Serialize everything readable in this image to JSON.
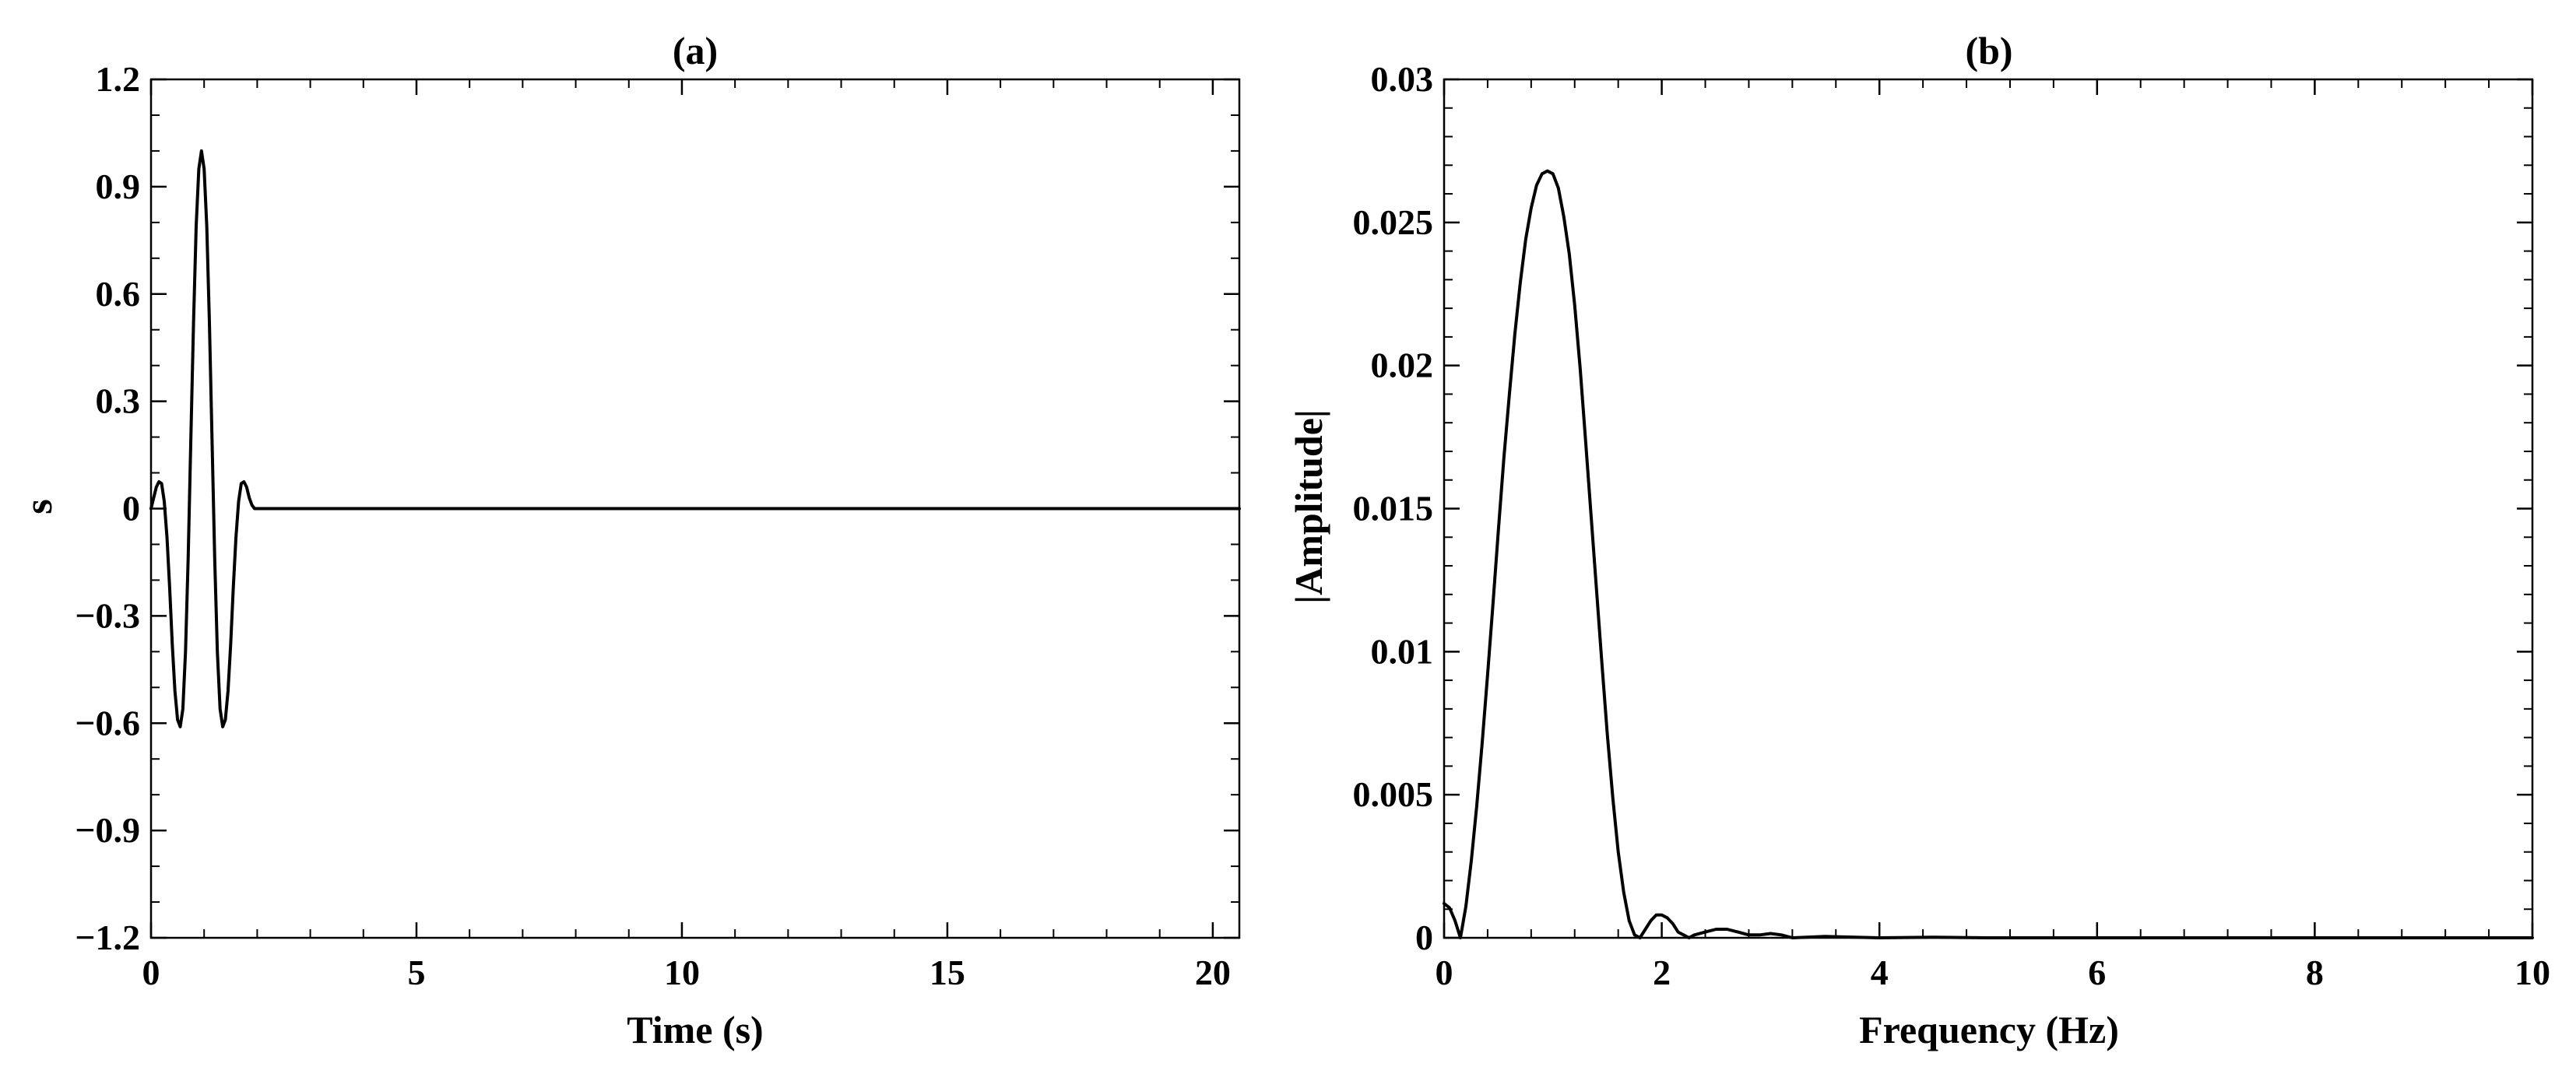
{
  "figure": {
    "background": "#ffffff",
    "line_color": "#000000"
  },
  "chart_data": [
    {
      "type": "line",
      "title": "(a)",
      "xlabel": "Time (s)",
      "ylabel": "s",
      "xlim": [
        0,
        20.5
      ],
      "ylim": [
        -1.2,
        1.2
      ],
      "xticks": [
        0,
        5,
        10,
        15,
        20
      ],
      "xtick_labels": [
        "0",
        "5",
        "10",
        "15",
        "20"
      ],
      "yticks": [
        -1.2,
        -0.9,
        -0.6,
        -0.3,
        0,
        0.3,
        0.6,
        0.9,
        1.2
      ],
      "ytick_labels": [
        "-1.2",
        "-0.9",
        "-0.6",
        "-0.3",
        "0",
        "0.3",
        "0.6",
        "0.9",
        "1.2"
      ],
      "minor_ticks": true,
      "grid": false,
      "box": true,
      "series": [
        {
          "x": [
            0,
            0.05,
            0.1,
            0.15,
            0.2,
            0.25,
            0.3,
            0.35,
            0.4,
            0.45,
            0.5,
            0.55,
            0.6,
            0.65,
            0.7,
            0.75,
            0.8,
            0.85,
            0.9,
            0.95,
            1.0,
            1.05,
            1.1,
            1.15,
            1.2,
            1.25,
            1.3,
            1.35,
            1.4,
            1.45,
            1.5,
            1.55,
            1.6,
            1.65,
            1.7,
            1.75,
            1.8,
            1.85,
            1.9,
            1.95,
            2.0,
            2.05,
            2.1,
            2.15,
            2.2,
            2.3,
            2.5,
            3.0,
            5.0,
            10.0,
            15.0,
            20.0,
            20.5
          ],
          "y": [
            0.0,
            0.03,
            0.06,
            0.075,
            0.07,
            0.02,
            -0.08,
            -0.22,
            -0.38,
            -0.51,
            -0.59,
            -0.61,
            -0.56,
            -0.4,
            -0.14,
            0.19,
            0.52,
            0.79,
            0.95,
            1.0,
            0.95,
            0.79,
            0.52,
            0.19,
            -0.14,
            -0.4,
            -0.56,
            -0.61,
            -0.59,
            -0.51,
            -0.38,
            -0.22,
            -0.08,
            0.02,
            0.07,
            0.075,
            0.06,
            0.03,
            0.01,
            0.0,
            0.0,
            0.0,
            0.0,
            0.0,
            0.0,
            0.0,
            0.0,
            0.0,
            0.0,
            0.0,
            0.0,
            0.0,
            0.0
          ]
        }
      ]
    },
    {
      "type": "line",
      "title": "(b)",
      "xlabel": "Frequency (Hz)",
      "ylabel": "|Amplitude|",
      "xlim": [
        0,
        10
      ],
      "ylim": [
        0,
        0.03
      ],
      "xticks": [
        0,
        2,
        4,
        6,
        8,
        10
      ],
      "xtick_labels": [
        "0",
        "2",
        "4",
        "6",
        "8",
        "10"
      ],
      "yticks": [
        0,
        0.005,
        0.01,
        0.015,
        0.02,
        0.025,
        0.03
      ],
      "ytick_labels": [
        "0",
        "0.005",
        "0.01",
        "0.015",
        "0.02",
        "0.025",
        "0.03"
      ],
      "minor_ticks": true,
      "grid": false,
      "box": true,
      "series": [
        {
          "x": [
            0,
            0.05,
            0.1,
            0.15,
            0.2,
            0.25,
            0.3,
            0.35,
            0.4,
            0.45,
            0.5,
            0.55,
            0.6,
            0.65,
            0.7,
            0.75,
            0.8,
            0.85,
            0.9,
            0.95,
            1.0,
            1.05,
            1.1,
            1.15,
            1.2,
            1.25,
            1.3,
            1.35,
            1.4,
            1.45,
            1.5,
            1.55,
            1.6,
            1.65,
            1.7,
            1.75,
            1.8,
            1.85,
            1.9,
            1.95,
            2.0,
            2.05,
            2.1,
            2.15,
            2.2,
            2.25,
            2.3,
            2.4,
            2.5,
            2.6,
            2.7,
            2.8,
            2.9,
            3.0,
            3.1,
            3.2,
            3.5,
            4.0,
            4.5,
            5.0,
            6.0,
            7.0,
            8.0,
            9.0,
            10.0
          ],
          "y": [
            0.0012,
            0.00105,
            0.0006,
            0.0,
            0.0011,
            0.0027,
            0.0046,
            0.0068,
            0.0092,
            0.0117,
            0.0143,
            0.0168,
            0.019,
            0.0211,
            0.0229,
            0.0244,
            0.0255,
            0.0263,
            0.0267,
            0.0268,
            0.0267,
            0.0262,
            0.0252,
            0.0239,
            0.0221,
            0.0199,
            0.0174,
            0.0148,
            0.0122,
            0.0096,
            0.0071,
            0.0049,
            0.003,
            0.0016,
            0.0006,
            0.0001,
            0.0,
            0.0003,
            0.0006,
            0.0008,
            0.0008,
            0.0007,
            0.0005,
            0.0002,
            0.0001,
            0.0,
            0.0001,
            0.0002,
            0.0003,
            0.0003,
            0.0002,
            0.0001,
            0.0001,
            0.00015,
            0.0001,
            0.0,
            5e-05,
            0.0,
            2e-05,
            0.0,
            0.0,
            0.0,
            0.0,
            0.0,
            0.0
          ]
        }
      ]
    }
  ]
}
